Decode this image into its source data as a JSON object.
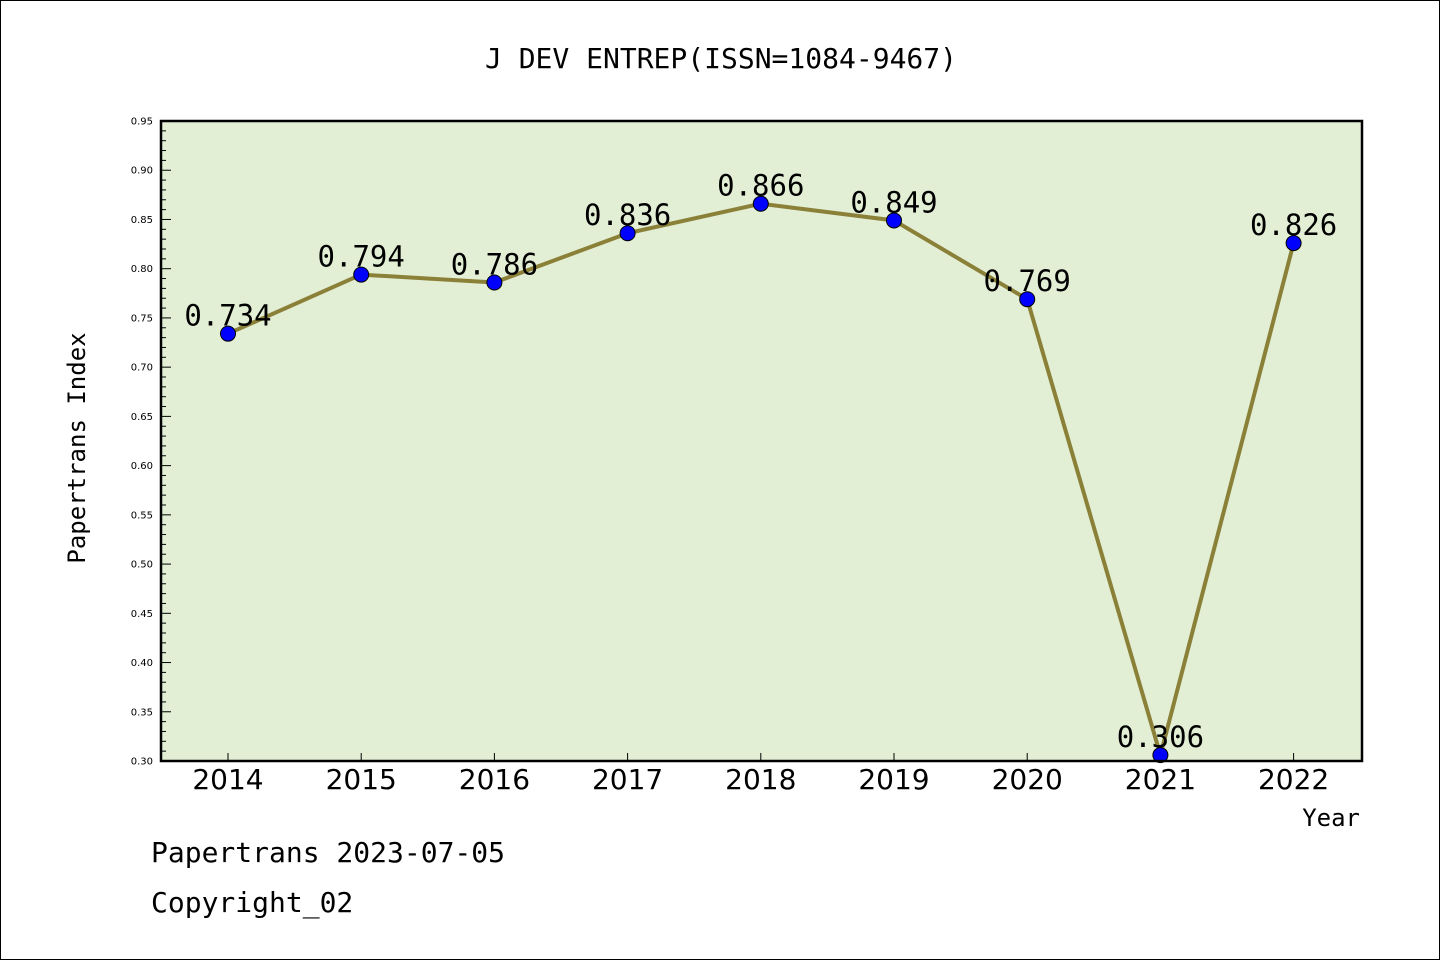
{
  "chart_data": {
    "type": "line",
    "title": "J DEV ENTREP(ISSN=1084-9467)",
    "xlabel": "Year",
    "ylabel": "Papertrans Index",
    "categories": [
      "2014",
      "2015",
      "2016",
      "2017",
      "2018",
      "2019",
      "2020",
      "2021",
      "2022"
    ],
    "series": [
      {
        "values": [
          0.734,
          0.794,
          0.786,
          0.836,
          0.866,
          0.849,
          0.769,
          0.306,
          0.826
        ]
      }
    ],
    "data_labels": [
      "0.734",
      "0.794",
      "0.786",
      "0.836",
      "0.866",
      "0.849",
      "0.769",
      "0.306",
      "0.826"
    ],
    "ylim": [
      0.3,
      0.95
    ],
    "yticks": [
      "0.30",
      "0.35",
      "0.40",
      "0.45",
      "0.50",
      "0.55",
      "0.60",
      "0.65",
      "0.70",
      "0.75",
      "0.80",
      "0.85",
      "0.90",
      "0.95"
    ],
    "grid": false,
    "legend": "none",
    "colors": {
      "plot_background": "#e2efd5",
      "line": "#8b8038",
      "marker": "#0000ff"
    }
  },
  "footer": {
    "line1": "Papertrans 2023-07-05",
    "line2": "Copyright_02"
  }
}
